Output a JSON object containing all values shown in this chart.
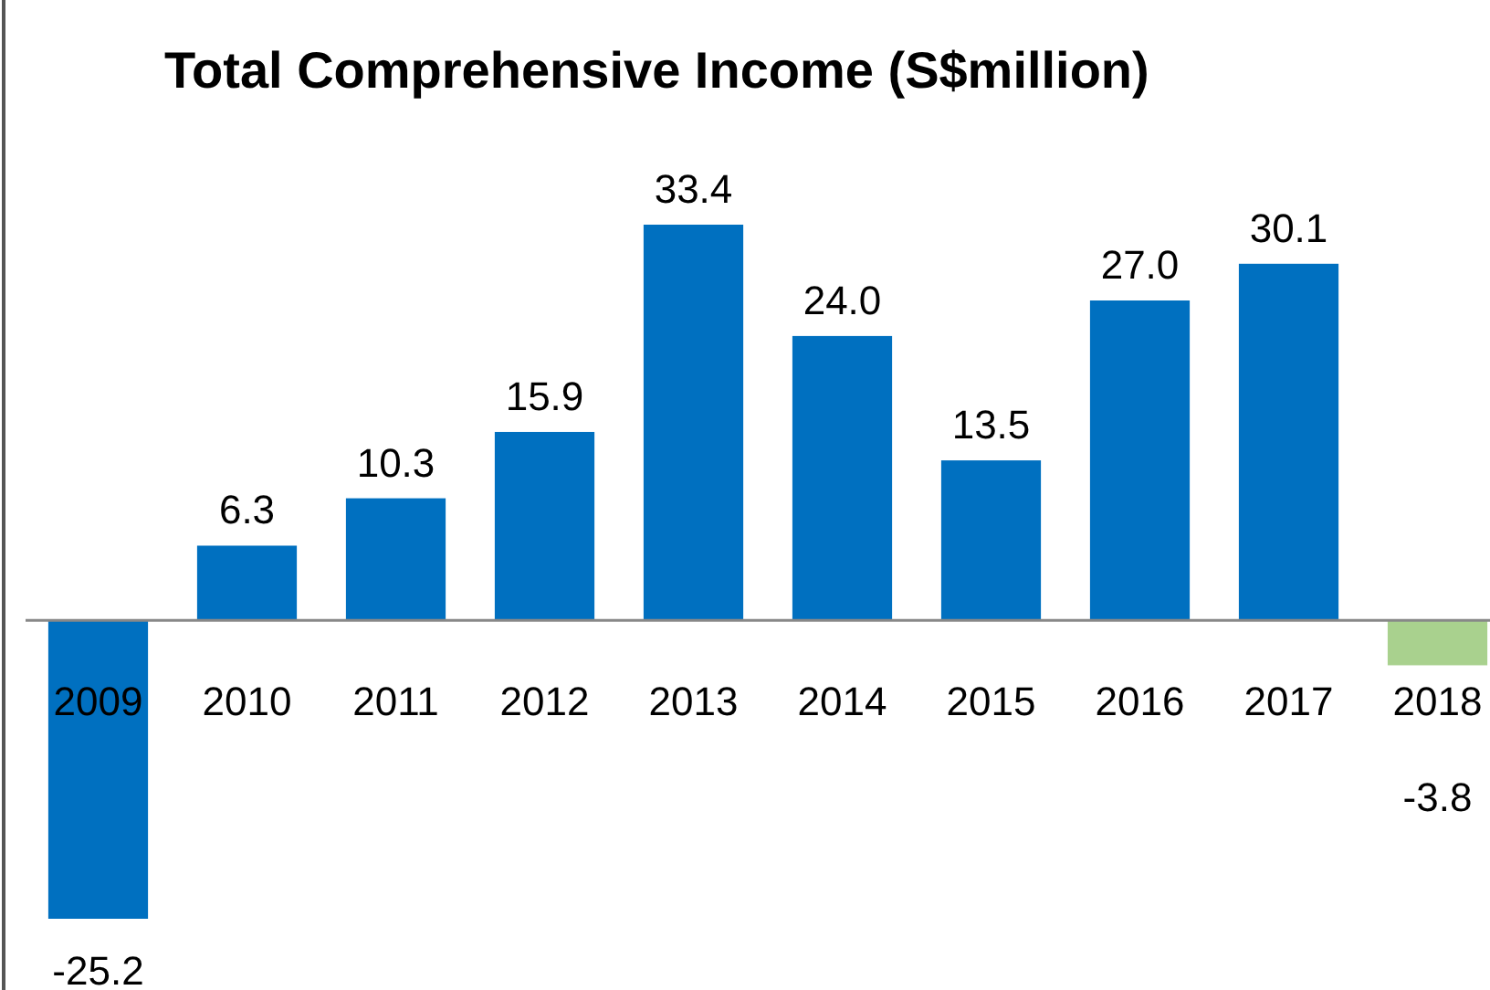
{
  "chart_data": {
    "type": "bar",
    "title": "Total Comprehensive Income (S$million)",
    "categories": [
      "2009",
      "2010",
      "2011",
      "2012",
      "2013",
      "2014",
      "2015",
      "2016",
      "2017",
      "2018"
    ],
    "values": [
      -25.2,
      6.3,
      10.3,
      15.9,
      33.4,
      24.0,
      13.5,
      27.0,
      30.1,
      -3.8
    ],
    "colors": [
      "#0070c0",
      "#0070c0",
      "#0070c0",
      "#0070c0",
      "#0070c0",
      "#0070c0",
      "#0070c0",
      "#0070c0",
      "#0070c0",
      "#a9d18e"
    ],
    "value_labels": [
      "-25.2",
      "6.3",
      "10.3",
      "15.9",
      "33.4",
      "24.0",
      "13.5",
      "27.0",
      "30.1",
      "-3.8"
    ]
  }
}
